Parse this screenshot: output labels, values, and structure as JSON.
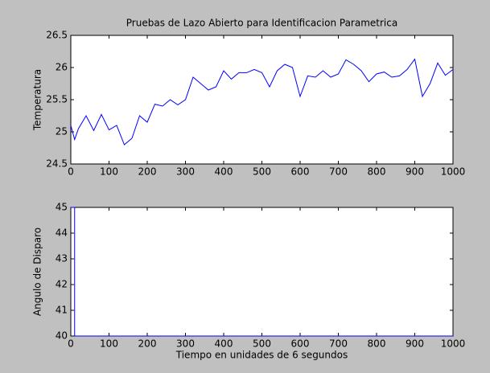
{
  "chart_data": [
    {
      "type": "line",
      "title": "Pruebas de Lazo Abierto para Identificacion Parametrica",
      "ylabel": "Temperatura",
      "x": [
        0,
        10,
        20,
        40,
        60,
        80,
        100,
        120,
        140,
        160,
        180,
        200,
        220,
        240,
        260,
        280,
        300,
        320,
        340,
        360,
        380,
        400,
        420,
        440,
        460,
        480,
        500,
        520,
        540,
        560,
        580,
        600,
        620,
        640,
        660,
        680,
        700,
        720,
        740,
        760,
        780,
        800,
        820,
        840,
        860,
        880,
        900,
        920,
        940,
        960,
        980,
        1000
      ],
      "series": [
        {
          "color": "#0000ff",
          "values": [
            25.1,
            24.88,
            25.05,
            25.25,
            25.02,
            25.27,
            25.03,
            25.1,
            24.8,
            24.9,
            25.25,
            25.15,
            25.43,
            25.4,
            25.5,
            25.42,
            25.5,
            25.85,
            25.75,
            25.65,
            25.7,
            25.95,
            25.82,
            25.92,
            25.92,
            25.97,
            25.92,
            25.7,
            25.95,
            26.05,
            26.0,
            25.55,
            25.87,
            25.85,
            25.95,
            25.85,
            25.9,
            26.12,
            26.05,
            25.95,
            25.78,
            25.9,
            25.93,
            25.85,
            25.87,
            25.97,
            26.13,
            25.55,
            25.75,
            26.07,
            25.88,
            25.97
          ]
        }
      ],
      "xlim": [
        0,
        1000
      ],
      "xticks": [
        0,
        100,
        200,
        300,
        400,
        500,
        600,
        700,
        800,
        900,
        1000
      ],
      "ylim": [
        24.5,
        26.5
      ],
      "yticks": [
        24.5,
        25,
        25.5,
        26,
        26.5
      ]
    },
    {
      "type": "line",
      "xlabel": "Tiempo en unidades de 6 segundos",
      "ylabel": "Angulo de Disparo",
      "x": [
        0,
        10,
        10,
        1000
      ],
      "series": [
        {
          "color": "#0000ff",
          "values": [
            45,
            45,
            40,
            40
          ]
        }
      ],
      "xlim": [
        0,
        1000
      ],
      "xticks": [
        0,
        100,
        200,
        300,
        400,
        500,
        600,
        700,
        800,
        900,
        1000
      ],
      "ylim": [
        40,
        45
      ],
      "yticks": [
        40,
        41,
        42,
        43,
        44,
        45
      ]
    }
  ]
}
